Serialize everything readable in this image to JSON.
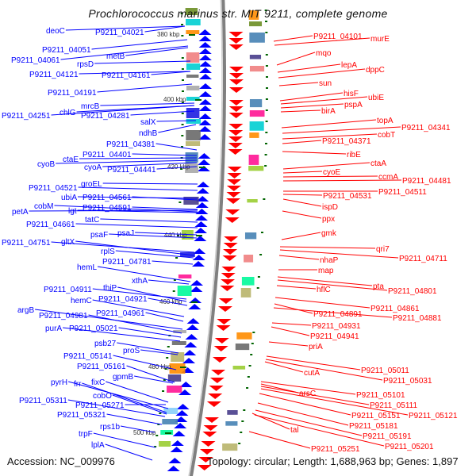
{
  "title": "Prochlorococcus marinus str. MIT 9211, complete genome",
  "accession": "Accession: NC_009976",
  "topology": "Topology: circular; Length: 1,688,963 bp; Genes: 1,897",
  "ticks": [
    "380 kbp",
    "400 kbp",
    "420 kbp",
    "440 kbp",
    "460 kbp",
    "480 kbp",
    "500 kbp"
  ],
  "colors": {
    "forward_strand": "#0000ff",
    "reverse_strand": "#ff0000",
    "backbone": "#808080",
    "tick": "#006400"
  },
  "forward_labels": [
    "deoC",
    "P9211_04021",
    "P9211_04051",
    "metB",
    "P9211_04061",
    "rpsD",
    "P9211_04121",
    "P9211_04161",
    "P9211_04191",
    "mrcB",
    "chlG",
    "P9211_04251",
    "P9211_04281",
    "salX",
    "ndhB",
    "P9211_04381",
    "P9211_04401",
    "ctaE",
    "cyoB",
    "cyoA",
    "P9211_04441",
    "groEL",
    "P9211_04521",
    "ubiA",
    "P9211_04561",
    "cobM",
    "lgt",
    "P9211_04591",
    "petA",
    "tatC",
    "P9211_04661",
    "psaF",
    "psaJ",
    "P9211_04751",
    "gltX",
    "rplS",
    "P9211_04781",
    "hemL",
    "xthA",
    "P9211_04911",
    "thiP",
    "hemC",
    "P9211_04921",
    "argB",
    "P9211_04981",
    "P9211_04961",
    "purA",
    "P9211_05021",
    "psb27",
    "proS",
    "P9211_05141",
    "P9211_05161",
    "gpmB",
    "pyrH",
    "frr",
    "fixC",
    "cobO",
    "P9211_05311",
    "P9211_05271",
    "P9211_05321",
    "rps1b",
    "trpF",
    "lplA"
  ],
  "reverse_labels": [
    "P9211_04101",
    "murE",
    "mqo",
    "lepA",
    "dppC",
    "sun",
    "hisF",
    "ubiE",
    "pspA",
    "birA",
    "topA",
    "P9211_04341",
    "cobT",
    "P9211_04371",
    "ribE",
    "ctaA",
    "cyoE",
    "ccmA",
    "P9211_04481",
    "P9211_04511",
    "P9211_04531",
    "ispD",
    "ppx",
    "gmk",
    "qri7",
    "P9211_04711",
    "nhaP",
    "map",
    "pta",
    "hflC",
    "P9211_04801",
    "P9211_04861",
    "P9211_04891",
    "P9211_04881",
    "P9211_04931",
    "P9211_04941",
    "priA",
    "P9211_05011",
    "cutA",
    "P9211_05031",
    "P9211_05101",
    "arsC",
    "P9211_05111",
    "P9211_05151",
    "P9211_05121",
    "P9211_05181",
    "P9211_05191",
    "tal",
    "P9211_05201",
    "P9211_05251"
  ]
}
